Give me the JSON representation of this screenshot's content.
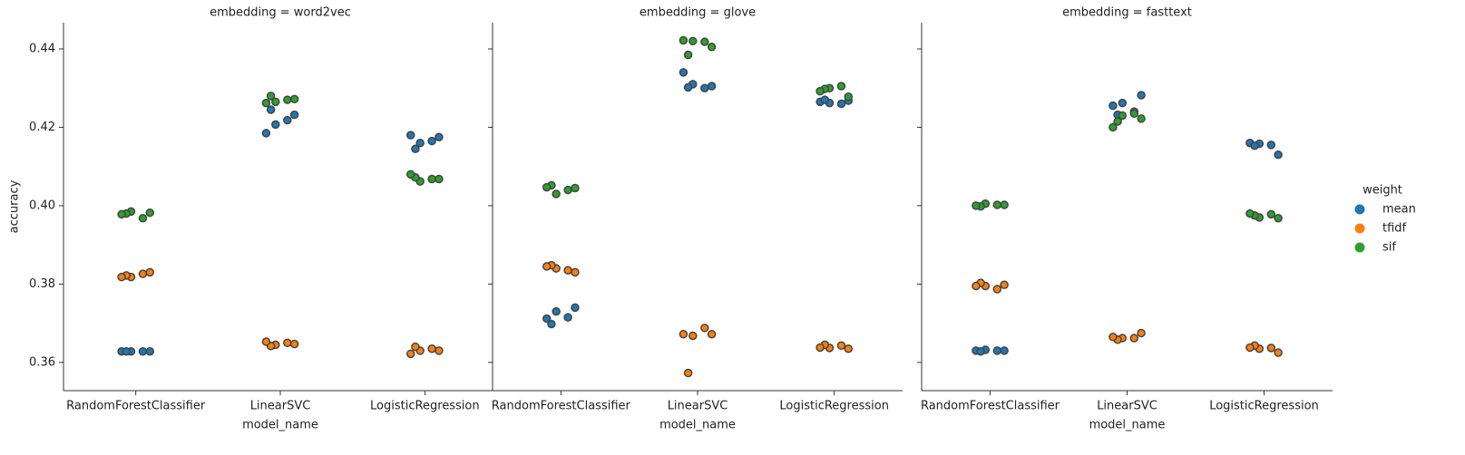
{
  "chart_data": [
    {
      "type": "strip",
      "title": "embedding = word2vec",
      "xlabel": "model_name",
      "ylabel": "accuracy",
      "legend_title": "weight",
      "categories": [
        "RandomForestClassifier",
        "LinearSVC",
        "LogisticRegression"
      ],
      "ylim": [
        0.3528,
        0.4467
      ],
      "yticks": [
        0.36,
        0.38,
        {
          "value": 0.4,
          "label": "0.40"
        },
        0.42,
        0.44
      ],
      "series": [
        {
          "name": "mean",
          "color": "#1f77b4",
          "values": [
            [
              0.3628,
              0.3628,
              0.3628,
              0.3628,
              0.3628
            ],
            [
              0.4185,
              0.4218,
              0.4207,
              0.4232,
              0.4245
            ],
            [
              0.418,
              0.4165,
              0.416,
              0.4175,
              0.4145
            ]
          ]
        },
        {
          "name": "tfidf",
          "color": "#ff7f0e",
          "values": [
            [
              0.3826,
              0.3818,
              0.383,
              0.3822,
              0.3818
            ],
            [
              0.365,
              0.3645,
              0.3647,
              0.3642,
              0.3653
            ],
            [
              0.3635,
              0.363,
              0.363,
              0.364,
              0.3622
            ]
          ]
        },
        {
          "name": "sif",
          "color": "#2ca02c",
          "values": [
            [
              0.3985,
              0.3982,
              0.398,
              0.3978,
              0.3968
            ],
            [
              0.4265,
              0.4272,
              0.428,
              0.4262,
              0.427
            ],
            [
              0.4062,
              0.4068,
              0.4072,
              0.408,
              0.4068
            ]
          ]
        }
      ]
    },
    {
      "type": "strip",
      "title": "embedding = glove",
      "xlabel": "model_name",
      "categories": [
        "RandomForestClassifier",
        "LinearSVC",
        "LogisticRegression"
      ],
      "ylim": [
        0.3528,
        0.4467
      ],
      "yticks": [
        0.36,
        0.38,
        0.4,
        0.42,
        0.44
      ],
      "series": [
        {
          "name": "mean",
          "color": "#1f77b4",
          "values": [
            [
              0.3712,
              0.3715,
              0.373,
              0.374,
              0.3698
            ],
            [
              0.434,
              0.43,
              0.431,
              0.4305,
              0.4302
            ],
            [
              0.4265,
              0.426,
              0.4262,
              0.4268,
              0.427
            ]
          ]
        },
        {
          "name": "tfidf",
          "color": "#ff7f0e",
          "values": [
            [
              0.3835,
              0.384,
              0.383,
              0.3848,
              0.3845
            ],
            [
              0.3688,
              0.3668,
              0.3672,
              0.3573,
              0.3672
            ],
            [
              0.3643,
              0.3637,
              0.3635,
              0.3645,
              0.3638
            ]
          ]
        },
        {
          "name": "sif",
          "color": "#2ca02c",
          "values": [
            [
              0.403,
              0.4045,
              0.4052,
              0.4047,
              0.404
            ],
            [
              0.442,
              0.4405,
              0.4385,
              0.4422,
              0.4418
            ],
            [
              0.43,
              0.4278,
              0.4298,
              0.4292,
              0.4305
            ]
          ]
        }
      ]
    },
    {
      "type": "strip",
      "title": "embedding = fasttext",
      "xlabel": "model_name",
      "categories": [
        "RandomForestClassifier",
        "LinearSVC",
        "LogisticRegression"
      ],
      "ylim": [
        0.3528,
        0.4467
      ],
      "yticks": [
        0.36,
        0.38,
        0.4,
        0.42,
        0.44
      ],
      "series": [
        {
          "name": "mean",
          "color": "#1f77b4",
          "values": [
            [
              0.363,
              0.363,
              0.3632,
              0.363,
              0.3628
            ],
            [
              0.4255,
              0.424,
              0.4262,
              0.4282,
              0.4232
            ],
            [
              0.416,
              0.4155,
              0.4158,
              0.413,
              0.4153
            ]
          ]
        },
        {
          "name": "tfidf",
          "color": "#ff7f0e",
          "values": [
            [
              0.3787,
              0.3795,
              0.3798,
              0.3803,
              0.3795
            ],
            [
              0.3662,
              0.3662,
              0.3675,
              0.3658,
              0.3665
            ],
            [
              0.3637,
              0.3635,
              0.3625,
              0.3643,
              0.3638
            ]
          ]
        },
        {
          "name": "sif",
          "color": "#2ca02c",
          "values": [
            [
              0.4005,
              0.4002,
              0.3998,
              0.4,
              0.4002
            ],
            [
              0.423,
              0.4222,
              0.4215,
              0.42,
              0.4235
            ],
            [
              0.397,
              0.3968,
              0.3975,
              0.398,
              0.3978
            ]
          ]
        }
      ]
    }
  ]
}
